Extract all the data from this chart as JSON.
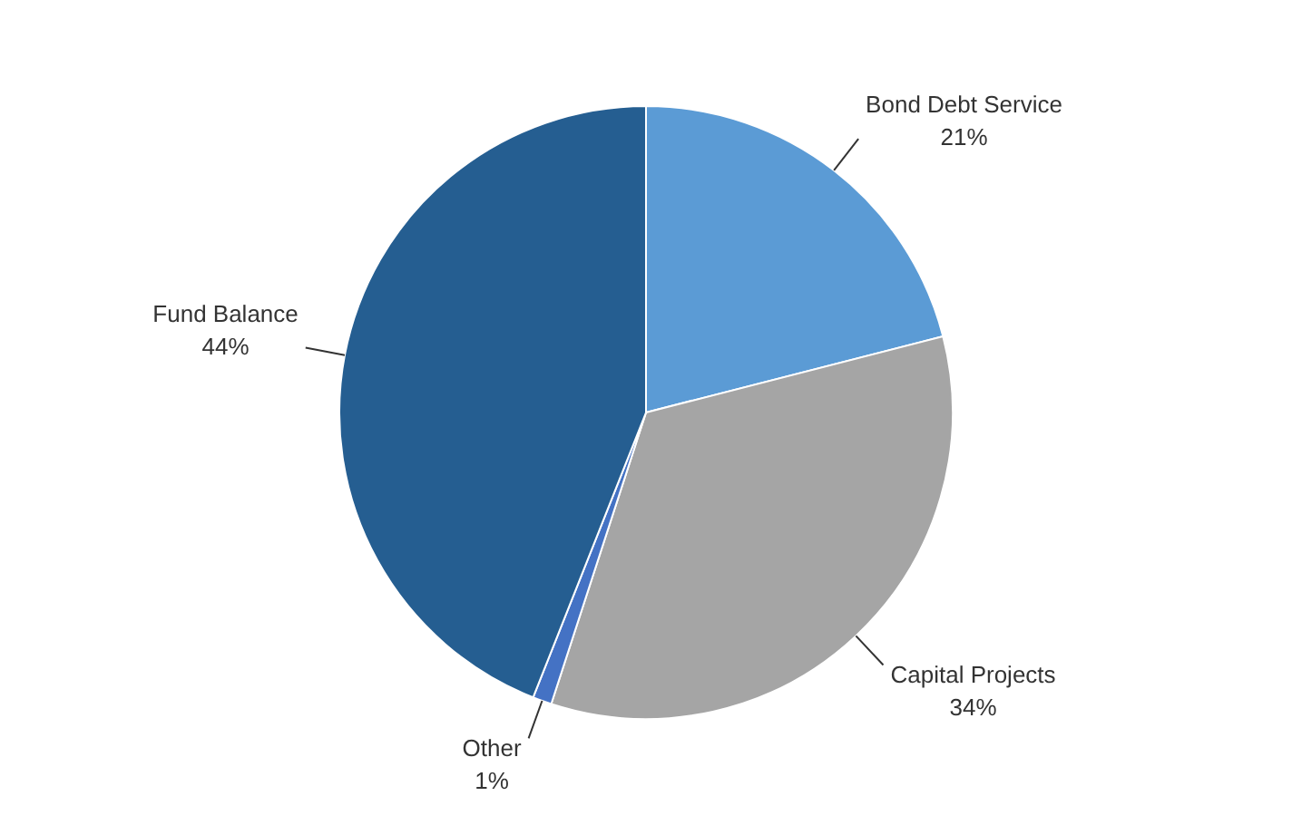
{
  "chart_data": {
    "type": "pie",
    "categories": [
      "Bond Debt Service",
      "Capital Projects",
      "Other",
      "Fund Balance"
    ],
    "values": [
      21,
      34,
      1,
      44
    ],
    "value_labels": [
      "21%",
      "34%",
      "1%",
      "44%"
    ],
    "colors": [
      "#5b9bd5",
      "#a5a5a5",
      "#4472c4",
      "#255e91"
    ],
    "legend": false
  }
}
